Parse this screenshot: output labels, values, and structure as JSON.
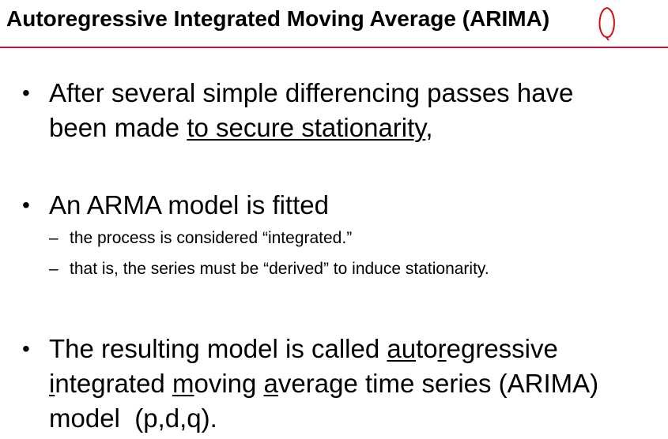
{
  "title": "Autoregressive Integrated Moving Average (ARIMA)",
  "bullets": [
    {
      "marker": "•",
      "runs": [
        {
          "text": "After several simple differencing passes have been made "
        },
        {
          "text": "to secure stationarity",
          "underline": true
        },
        {
          "text": ","
        }
      ]
    },
    {
      "marker": "•",
      "runs": [
        {
          "text": "An ARMA model is fitted"
        }
      ],
      "subs": [
        {
          "marker": "–",
          "text": "the process is considered “integrated.”"
        },
        {
          "marker": "–",
          "text": "that is, the series must be “derived” to induce stationarity."
        }
      ]
    },
    {
      "marker": "•",
      "runs": [
        {
          "text": "The resulting model is called "
        },
        {
          "text": "au",
          "underline": true
        },
        {
          "text": "to"
        },
        {
          "text": "r",
          "underline": true
        },
        {
          "text": "egressive "
        },
        {
          "text": "i",
          "underline": true
        },
        {
          "text": "ntegrated "
        },
        {
          "text": "m",
          "underline": true
        },
        {
          "text": "oving "
        },
        {
          "text": "a",
          "underline": true
        },
        {
          "text": "verage time series (ARIMA) model  (p,d,q)."
        }
      ]
    }
  ]
}
